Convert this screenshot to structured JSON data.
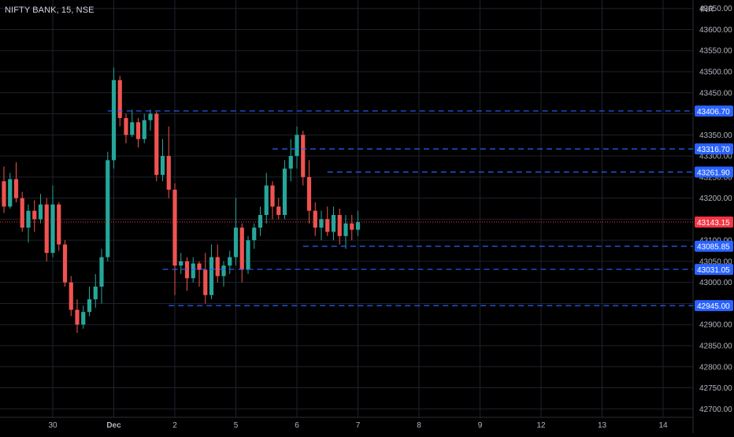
{
  "header": {
    "symbol_line": "NIFTY BANK, 15, NSE",
    "currency": "INR"
  },
  "colors": {
    "background": "#000000",
    "grid": "#1e222d",
    "up": "#26a69a",
    "down": "#ef5350",
    "level_line": "#2962ff",
    "level_label_bg": "#2962ff",
    "last_price_bg": "#f23645",
    "axis_text": "#b2b5be"
  },
  "chart_data": {
    "type": "candlestick",
    "title": "NIFTY BANK, 15, NSE",
    "grid": true,
    "ylim": [
      42680,
      43670
    ],
    "y_ticks": [
      "43650.00",
      "43600.00",
      "43550.00",
      "43500.00",
      "43450.00",
      "43400.00",
      "43350.00",
      "43300.00",
      "43250.00",
      "43200.00",
      "43150.00",
      "43100.00",
      "43050.00",
      "43000.00",
      "42950.00",
      "42900.00",
      "42850.00",
      "42800.00",
      "42750.00",
      "42700.00"
    ],
    "x_ticks": [
      {
        "label": "30",
        "index": 8
      },
      {
        "label": "Dec",
        "index": 18
      },
      {
        "label": "2",
        "index": 28
      },
      {
        "label": "5",
        "index": 38
      },
      {
        "label": "6",
        "index": 48
      },
      {
        "label": "7",
        "index": 58
      },
      {
        "label": "8",
        "index": 68
      },
      {
        "label": "9",
        "index": 78
      },
      {
        "label": "12",
        "index": 88
      },
      {
        "label": "13",
        "index": 98
      },
      {
        "label": "14",
        "index": 108
      }
    ],
    "candles": [
      [
        43240,
        43275,
        43165,
        43180
      ],
      [
        43180,
        43260,
        43175,
        43245
      ],
      [
        43245,
        43285,
        43190,
        43200
      ],
      [
        43200,
        43215,
        43120,
        43130
      ],
      [
        43130,
        43185,
        43095,
        43170
      ],
      [
        43170,
        43195,
        43120,
        43150
      ],
      [
        43150,
        43210,
        43140,
        43185
      ],
      [
        43185,
        43200,
        43050,
        43070
      ],
      [
        43070,
        43230,
        43060,
        43185
      ],
      [
        43185,
        43190,
        43075,
        43090
      ],
      [
        43090,
        43100,
        42990,
        43000
      ],
      [
        43000,
        43015,
        42920,
        42935
      ],
      [
        42935,
        42960,
        42880,
        42900
      ],
      [
        42900,
        42945,
        42890,
        42930
      ],
      [
        42930,
        42990,
        42920,
        42960
      ],
      [
        42960,
        43020,
        42940,
        42990
      ],
      [
        42990,
        43080,
        42950,
        43060
      ],
      [
        43060,
        43310,
        43050,
        43290
      ],
      [
        43290,
        43510,
        43270,
        43480
      ],
      [
        43480,
        43490,
        43370,
        43390
      ],
      [
        43390,
        43400,
        43330,
        43350
      ],
      [
        43350,
        43410,
        43345,
        43380
      ],
      [
        43380,
        43390,
        43320,
        43340
      ],
      [
        43340,
        43400,
        43330,
        43385
      ],
      [
        43385,
        43410,
        43360,
        43400
      ],
      [
        43400,
        43405,
        43240,
        43255
      ],
      [
        43255,
        43340,
        43240,
        43300
      ],
      [
        43300,
        43370,
        43200,
        43220
      ],
      [
        43220,
        43235,
        42970,
        43040
      ],
      [
        43040,
        43070,
        43020,
        43050
      ],
      [
        43050,
        43060,
        42980,
        43010
      ],
      [
        43010,
        43060,
        43000,
        43045
      ],
      [
        43045,
        43050,
        42990,
        43030
      ],
      [
        43030,
        43070,
        42950,
        42970
      ],
      [
        42970,
        43090,
        42960,
        43060
      ],
      [
        43060,
        43090,
        43000,
        43015
      ],
      [
        43015,
        43050,
        42990,
        43040
      ],
      [
        43040,
        43075,
        43020,
        43060
      ],
      [
        43060,
        43200,
        43040,
        43130
      ],
      [
        43130,
        43140,
        43000,
        43030
      ],
      [
        43030,
        43110,
        43020,
        43100
      ],
      [
        43100,
        43140,
        43080,
        43130
      ],
      [
        43130,
        43180,
        43110,
        43160
      ],
      [
        43160,
        43260,
        43140,
        43230
      ],
      [
        43230,
        43240,
        43150,
        43180
      ],
      [
        43180,
        43200,
        43150,
        43160
      ],
      [
        43160,
        43290,
        43150,
        43270
      ],
      [
        43270,
        43340,
        43240,
        43300
      ],
      [
        43300,
        43370,
        43270,
        43350
      ],
      [
        43350,
        43360,
        43230,
        43250
      ],
      [
        43250,
        43290,
        43140,
        43170
      ],
      [
        43170,
        43190,
        43110,
        43130
      ],
      [
        43130,
        43170,
        43100,
        43150
      ],
      [
        43150,
        43180,
        43110,
        43120
      ],
      [
        43120,
        43180,
        43100,
        43160
      ],
      [
        43160,
        43175,
        43090,
        43110
      ],
      [
        43110,
        43160,
        43080,
        43140
      ],
      [
        43140,
        43160,
        43100,
        43125
      ],
      [
        43125,
        43170,
        43110,
        43143
      ]
    ],
    "levels": [
      {
        "value": 43406.7,
        "label": "43406.70",
        "start_index": 17
      },
      {
        "value": 43316.7,
        "label": "43316.70",
        "start_index": 44
      },
      {
        "value": 43261.9,
        "label": "43261.90",
        "start_index": 53
      },
      {
        "value": 43085.85,
        "label": "43085.85",
        "start_index": 49
      },
      {
        "value": 43031.05,
        "label": "43031.05",
        "start_index": 26
      },
      {
        "value": 42945.0,
        "label": "42945.00",
        "start_index": 27
      }
    ],
    "last_price": {
      "value": 43143.15,
      "label": "43143.15"
    },
    "plot": {
      "x_start": 0,
      "x_end": 880,
      "bar_width": 8
    }
  }
}
